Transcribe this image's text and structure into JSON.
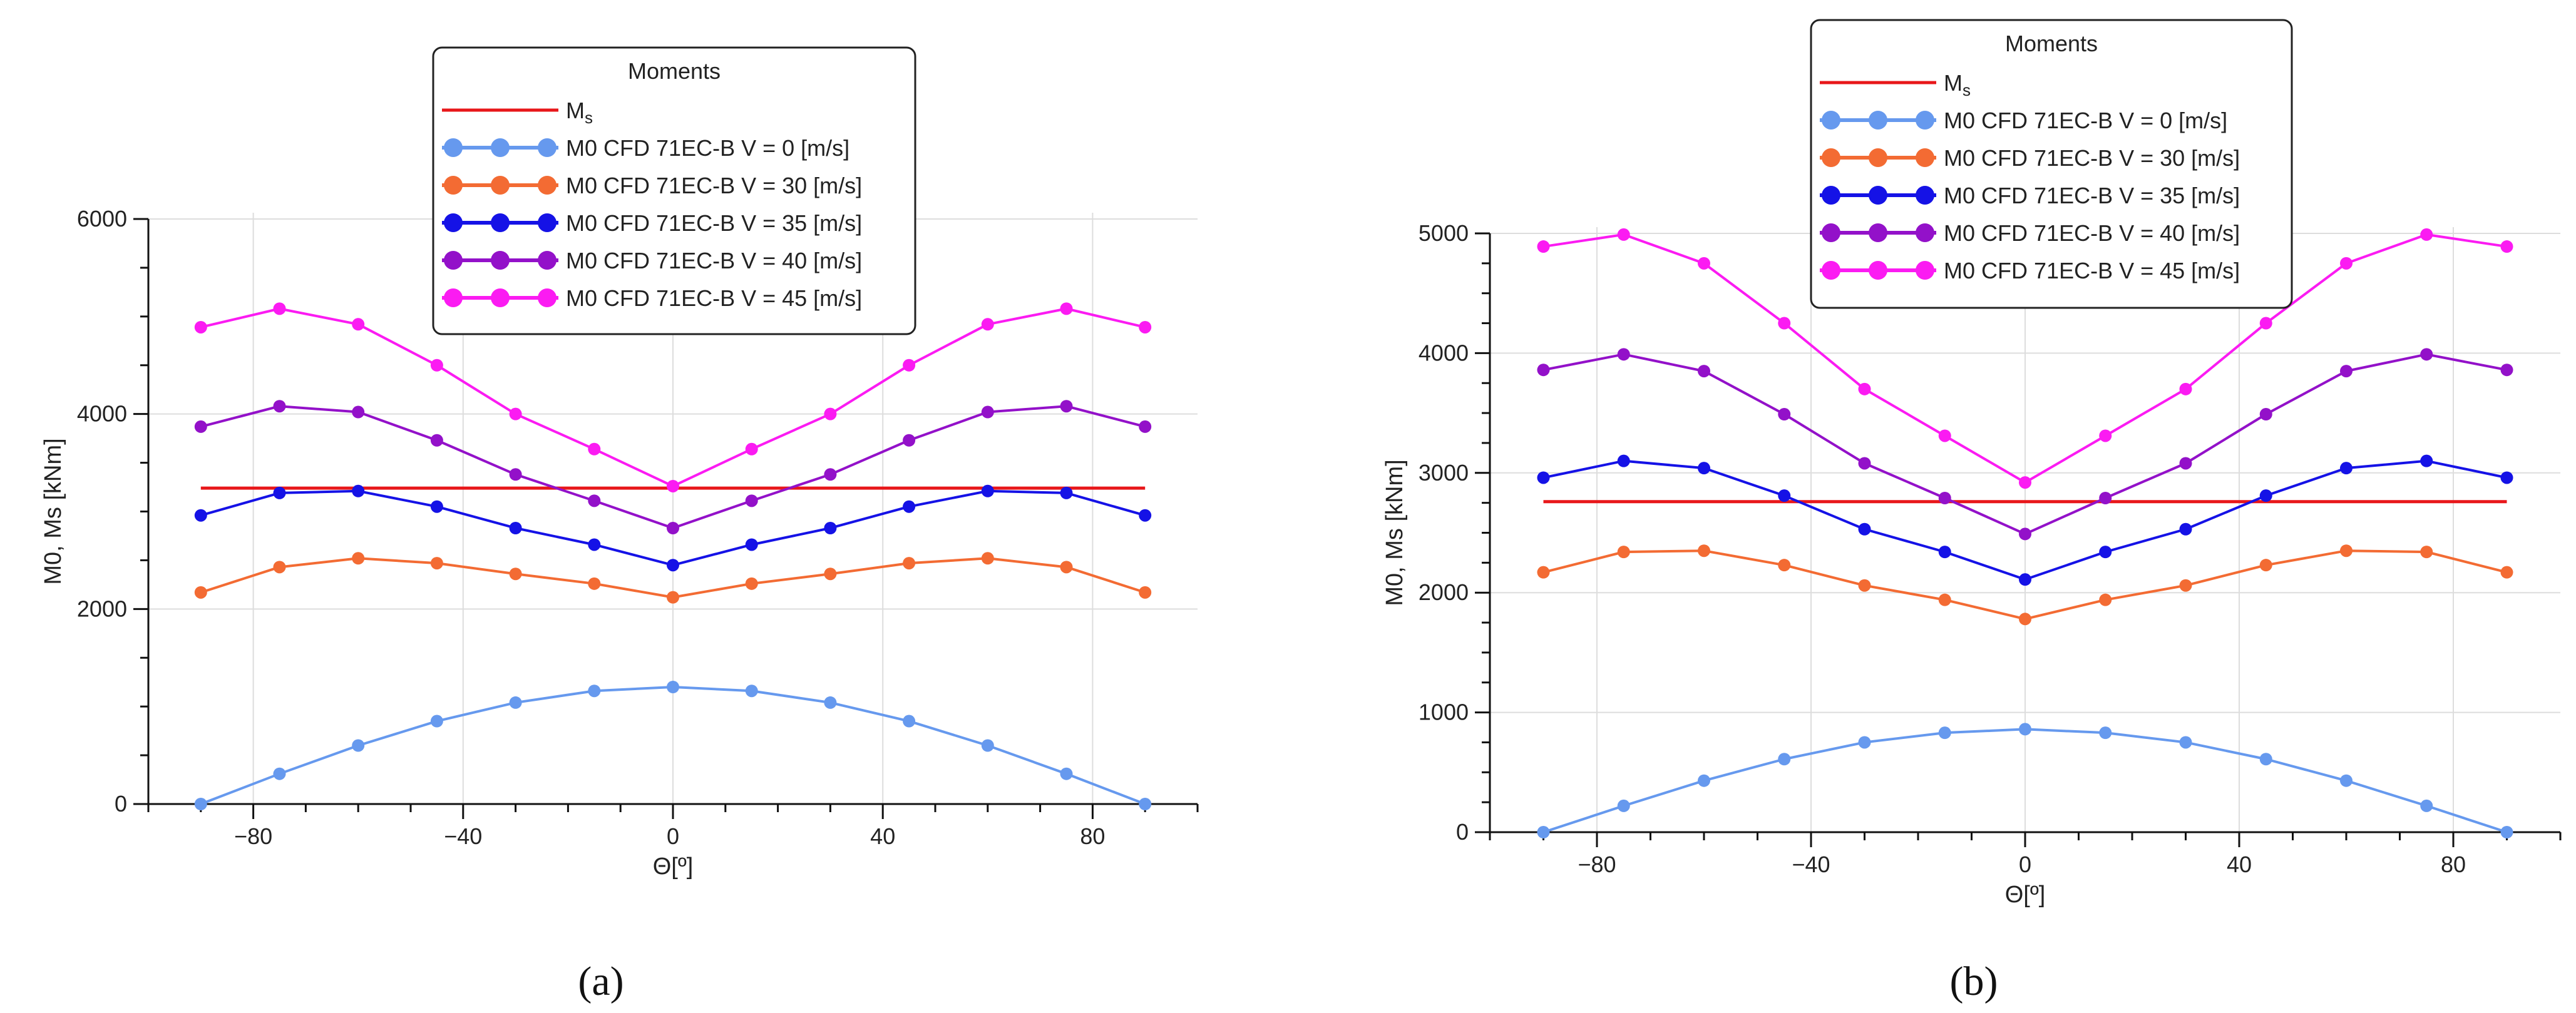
{
  "figure": {
    "panel_labels": [
      "(a)",
      "(b)"
    ]
  },
  "colors": {
    "ms": "#e8171a",
    "v0": "#6699ee",
    "v30": "#f36b33",
    "v35": "#1512e6",
    "v40": "#9311c9",
    "v45": "#fb1bf2",
    "grid": "#dddddd",
    "axis": "#111111"
  },
  "chart_data": [
    {
      "type": "line",
      "panel": "(a)",
      "xlabel": "Θ[º]",
      "ylabel": "M0, Ms [kNm]",
      "xlim": [
        -100,
        100
      ],
      "ylim": [
        0,
        6000
      ],
      "xticks": [
        -80,
        -40,
        0,
        40,
        80
      ],
      "yticks": [
        0,
        2000,
        4000,
        6000
      ],
      "grid": true,
      "legend": {
        "title": "Moments",
        "placement": "top-center",
        "entries": [
          "Ms",
          "M0 CFD 71EC-B V =  0 [m/s]",
          "M0 CFD 71EC-B V = 30 [m/s]",
          "M0 CFD 71EC-B V = 35 [m/s]",
          "M0 CFD 71EC-B V = 40 [m/s]",
          "M0 CFD 71EC-B V = 45 [m/s]"
        ]
      },
      "x": [
        -90,
        -75,
        -60,
        -45,
        -30,
        -15,
        0,
        15,
        30,
        45,
        60,
        75,
        90
      ],
      "series": [
        {
          "name": "Ms",
          "key": "ms",
          "markers": false,
          "values": [
            3240,
            3240,
            3240,
            3240,
            3240,
            3240,
            3240,
            3240,
            3240,
            3240,
            3240,
            3240,
            3240
          ]
        },
        {
          "name": "M0 CFD 71EC-B V =  0 [m/s]",
          "key": "v0",
          "markers": true,
          "values": [
            0,
            310,
            600,
            850,
            1040,
            1160,
            1200,
            1160,
            1040,
            850,
            600,
            310,
            0
          ]
        },
        {
          "name": "M0 CFD 71EC-B V = 30 [m/s]",
          "key": "v30",
          "markers": true,
          "values": [
            2170,
            2430,
            2520,
            2470,
            2360,
            2260,
            2120,
            2260,
            2360,
            2470,
            2520,
            2430,
            2170
          ]
        },
        {
          "name": "M0 CFD 71EC-B V = 35 [m/s]",
          "key": "v35",
          "markers": true,
          "values": [
            2960,
            3190,
            3210,
            3050,
            2830,
            2660,
            2450,
            2660,
            2830,
            3050,
            3210,
            3190,
            2960
          ]
        },
        {
          "name": "M0 CFD 71EC-B V = 40 [m/s]",
          "key": "v40",
          "markers": true,
          "values": [
            3870,
            4080,
            4020,
            3730,
            3380,
            3110,
            2830,
            3110,
            3380,
            3730,
            4020,
            4080,
            3870
          ]
        },
        {
          "name": "M0 CFD 71EC-B V = 45 [m/s]",
          "key": "v45",
          "markers": true,
          "values": [
            4890,
            5080,
            4920,
            4500,
            4000,
            3640,
            3260,
            3640,
            4000,
            4500,
            4920,
            5080,
            4890
          ]
        }
      ]
    },
    {
      "type": "line",
      "panel": "(b)",
      "xlabel": "Θ[º]",
      "ylabel": "M0, Ms [kNm]",
      "xlim": [
        -100,
        100
      ],
      "ylim": [
        0,
        5000
      ],
      "xticks": [
        -80,
        -40,
        0,
        40,
        80
      ],
      "yticks": [
        0,
        1000,
        2000,
        3000,
        4000,
        5000
      ],
      "grid": true,
      "legend": {
        "title": "Moments",
        "placement": "top-center",
        "entries": [
          "Ms",
          "M0 CFD 71EC-B V =  0 [m/s]",
          "M0 CFD 71EC-B V = 30 [m/s]",
          "M0 CFD 71EC-B V = 35 [m/s]",
          "M0 CFD 71EC-B V = 40 [m/s]",
          "M0 CFD 71EC-B V = 45 [m/s]"
        ]
      },
      "x": [
        -90,
        -75,
        -60,
        -45,
        -30,
        -15,
        0,
        15,
        30,
        45,
        60,
        75,
        90
      ],
      "series": [
        {
          "name": "Ms",
          "key": "ms",
          "markers": false,
          "values": [
            2760,
            2760,
            2760,
            2760,
            2760,
            2760,
            2760,
            2760,
            2760,
            2760,
            2760,
            2760,
            2760
          ]
        },
        {
          "name": "M0 CFD 71EC-B V =  0 [m/s]",
          "key": "v0",
          "markers": true,
          "values": [
            0,
            220,
            430,
            610,
            750,
            830,
            860,
            830,
            750,
            610,
            430,
            220,
            0
          ]
        },
        {
          "name": "M0 CFD 71EC-B V = 30 [m/s]",
          "key": "v30",
          "markers": true,
          "values": [
            2170,
            2340,
            2350,
            2230,
            2060,
            1940,
            1780,
            1940,
            2060,
            2230,
            2350,
            2340,
            2170
          ]
        },
        {
          "name": "M0 CFD 71EC-B V = 35 [m/s]",
          "key": "v35",
          "markers": true,
          "values": [
            2960,
            3100,
            3040,
            2810,
            2530,
            2340,
            2110,
            2340,
            2530,
            2810,
            3040,
            3100,
            2960
          ]
        },
        {
          "name": "M0 CFD 71EC-B V = 40 [m/s]",
          "key": "v40",
          "markers": true,
          "values": [
            3860,
            3990,
            3850,
            3490,
            3080,
            2790,
            2490,
            2790,
            3080,
            3490,
            3850,
            3990,
            3860
          ]
        },
        {
          "name": "M0 CFD 71EC-B V = 45 [m/s]",
          "key": "v45",
          "markers": true,
          "values": [
            4890,
            4990,
            4750,
            4250,
            3700,
            3310,
            2920,
            3310,
            3700,
            4250,
            4750,
            4990,
            4890
          ]
        }
      ]
    }
  ]
}
